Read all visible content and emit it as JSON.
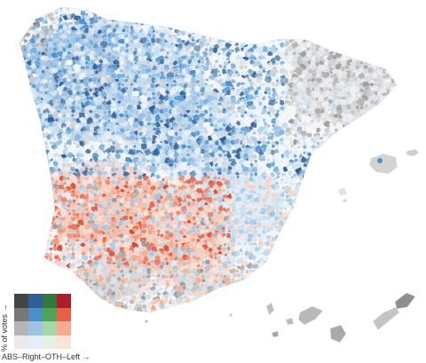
{
  "legend": {
    "y_label": "% of votes →",
    "x_label": "ABS–Right–OTH–Left →",
    "columns": [
      "ABS",
      "Right",
      "OTH",
      "Left"
    ],
    "rows_top_to_bottom": [
      [
        "#444444",
        "#2f5f96",
        "#2f7a3c",
        "#b01d27"
      ],
      [
        "#777777",
        "#4a8fc9",
        "#4da453",
        "#e95f46"
      ],
      [
        "#b5b5b5",
        "#9cc4e6",
        "#a6d7a4",
        "#f6ab90"
      ],
      [
        "#eaeaea",
        "#e3eef8",
        "#e4f2e1",
        "#fbe3d8"
      ]
    ]
  },
  "colors": {
    "abs": "#8a8a8a",
    "right": "#4a8fc9",
    "oth": "#4da453",
    "left": "#e95f46",
    "background": "#ffffff"
  }
}
